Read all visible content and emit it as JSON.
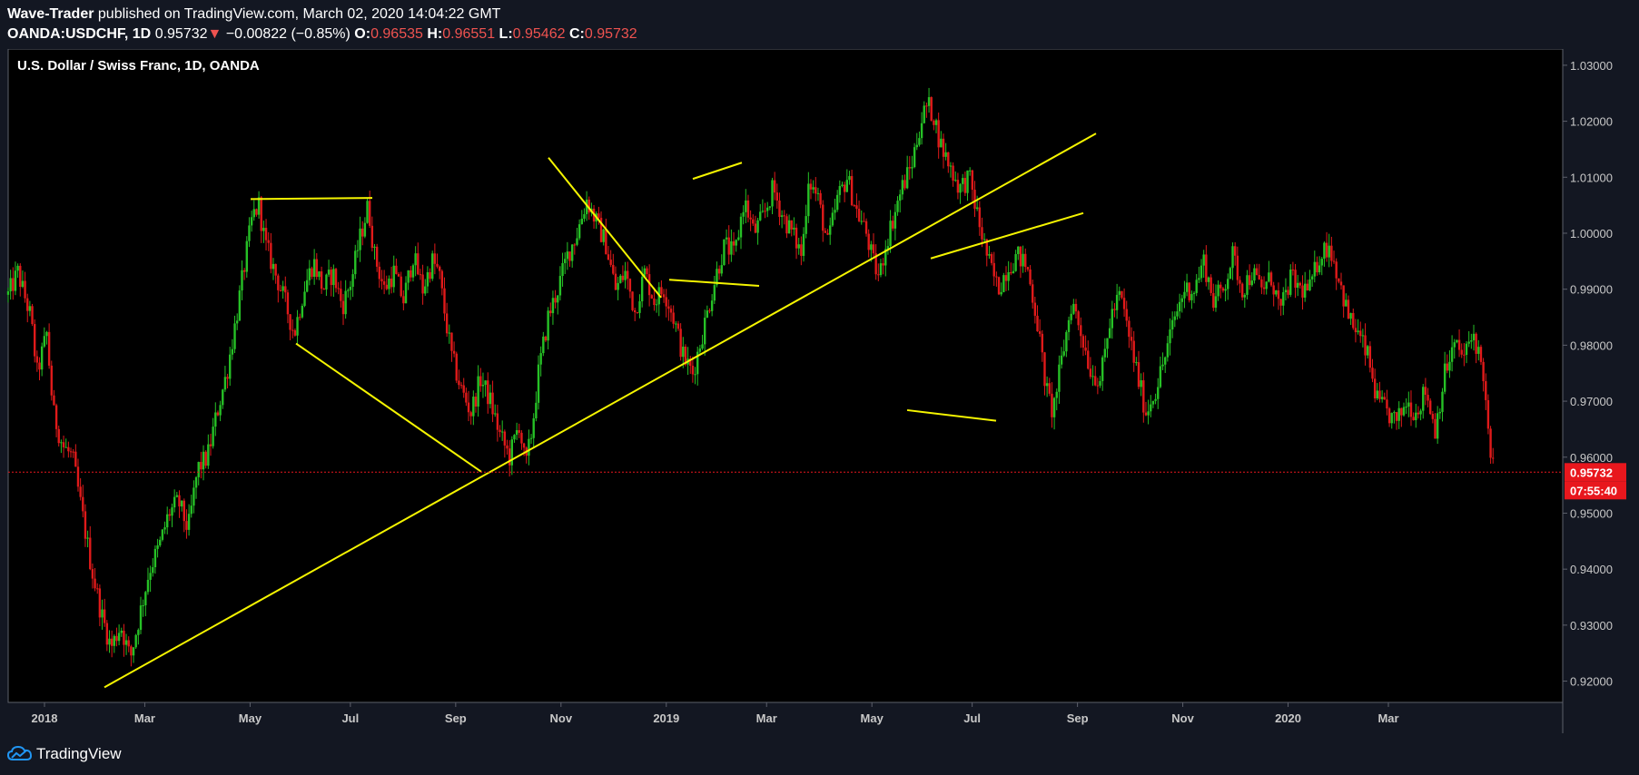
{
  "header": {
    "author": "Wave-Trader",
    "published": " published on TradingView.com, March 02, 2020 14:04:22 GMT",
    "symbol": "OANDA:USDCHF, 1D",
    "last": "0.95732",
    "arrow": "▼",
    "change": "−0.00822 (−0.85%)",
    "o_label": "O:",
    "o": "0.96535",
    "h_label": "H:",
    "h": "0.96551",
    "l_label": "L:",
    "l": "0.95462",
    "c_label": "C:",
    "c": "0.95732"
  },
  "footer": {
    "brand": "TradingView"
  },
  "colors": {
    "up": "#26c126",
    "down": "#e01a1a",
    "trendline": "#f5f500",
    "price_tag": "#e8171d",
    "background": "#000000"
  },
  "chart_data": {
    "type": "candlestick",
    "title": "U.S. Dollar / Swiss Franc, 1D, OANDA",
    "xlabel": "",
    "ylabel": "",
    "ylim": [
      0.9162,
      1.0329
    ],
    "y_ticks": [
      "1.03000",
      "1.02000",
      "1.01000",
      "1.00000",
      "0.99000",
      "0.98000",
      "0.97000",
      "0.96000",
      "0.95000",
      "0.94000",
      "0.93000",
      "0.92000"
    ],
    "x_ticks": [
      "2018",
      "Mar",
      "May",
      "Jul",
      "Sep",
      "Nov",
      "2019",
      "Mar",
      "May",
      "Jul",
      "Sep",
      "Nov",
      "2020",
      "Mar"
    ],
    "x_tick_index": [
      0,
      40,
      82,
      122,
      164,
      206,
      248,
      288,
      330,
      370,
      412,
      454,
      496,
      536
    ],
    "last_price": "0.95732",
    "countdown": "07:55:40",
    "grid": false,
    "close_path": [
      [
        0,
        0.989
      ],
      [
        6,
        0.993
      ],
      [
        14,
        0.985
      ],
      [
        18,
        0.975
      ],
      [
        24,
        0.982
      ],
      [
        28,
        0.968
      ],
      [
        34,
        0.962
      ],
      [
        40,
        0.96
      ],
      [
        46,
        0.95
      ],
      [
        52,
        0.94
      ],
      [
        58,
        0.932
      ],
      [
        64,
        0.926
      ],
      [
        70,
        0.93
      ],
      [
        76,
        0.924
      ],
      [
        82,
        0.932
      ],
      [
        88,
        0.94
      ],
      [
        94,
        0.944
      ],
      [
        100,
        0.95
      ],
      [
        106,
        0.952
      ],
      [
        112,
        0.947
      ],
      [
        118,
        0.958
      ],
      [
        124,
        0.96
      ],
      [
        130,
        0.968
      ],
      [
        136,
        0.975
      ],
      [
        142,
        0.985
      ],
      [
        148,
        0.996
      ],
      [
        152,
        1.003
      ],
      [
        156,
        1.005
      ],
      [
        160,
        0.998
      ],
      [
        166,
        0.993
      ],
      [
        172,
        0.988
      ],
      [
        178,
        0.982
      ],
      [
        184,
        0.99
      ],
      [
        190,
        0.995
      ],
      [
        196,
        0.99
      ],
      [
        202,
        0.993
      ],
      [
        208,
        0.987
      ],
      [
        214,
        0.992
      ],
      [
        218,
        0.998
      ],
      [
        224,
        1.005
      ],
      [
        228,
        0.996
      ],
      [
        234,
        0.99
      ],
      [
        240,
        0.993
      ],
      [
        246,
        0.988
      ],
      [
        252,
        0.996
      ],
      [
        258,
        0.99
      ],
      [
        264,
        0.995
      ],
      [
        268,
        0.993
      ],
      [
        272,
        0.985
      ],
      [
        276,
        0.978
      ],
      [
        282,
        0.972
      ],
      [
        288,
        0.968
      ],
      [
        294,
        0.974
      ],
      [
        300,
        0.97
      ],
      [
        306,
        0.964
      ],
      [
        312,
        0.96
      ],
      [
        318,
        0.966
      ],
      [
        322,
        0.958
      ],
      [
        326,
        0.965
      ],
      [
        330,
        0.975
      ],
      [
        336,
        0.985
      ],
      [
        342,
        0.99
      ],
      [
        348,
        0.996
      ],
      [
        354,
        1.0
      ],
      [
        360,
        1.006
      ],
      [
        366,
        1.002
      ],
      [
        372,
        0.998
      ],
      [
        378,
        0.99
      ],
      [
        384,
        0.993
      ],
      [
        390,
        0.986
      ],
      [
        396,
        0.993
      ],
      [
        402,
        0.988
      ],
      [
        408,
        0.99
      ],
      [
        414,
        0.985
      ],
      [
        420,
        0.978
      ],
      [
        426,
        0.975
      ],
      [
        432,
        0.982
      ],
      [
        440,
        0.992
      ],
      [
        446,
        0.998
      ],
      [
        452,
        0.996
      ],
      [
        458,
        1.006
      ],
      [
        464,
        1.0
      ],
      [
        470,
        1.003
      ],
      [
        476,
        1.008
      ],
      [
        482,
        1.003
      ],
      [
        488,
        1.0
      ],
      [
        494,
        0.996
      ],
      [
        498,
        1.01
      ],
      [
        504,
        1.006
      ],
      [
        510,
        0.998
      ],
      [
        516,
        1.006
      ],
      [
        522,
        1.01
      ],
      [
        528,
        1.004
      ],
      [
        534,
        1.0
      ],
      [
        538,
        0.995
      ],
      [
        542,
        0.992
      ],
      [
        546,
        0.998
      ],
      [
        550,
        1.002
      ],
      [
        556,
        1.008
      ],
      [
        562,
        1.012
      ],
      [
        568,
        1.02
      ],
      [
        572,
        1.023
      ],
      [
        576,
        1.021
      ],
      [
        580,
        1.016
      ],
      [
        586,
        1.012
      ],
      [
        592,
        1.008
      ],
      [
        598,
        1.01
      ],
      [
        604,
        1.002
      ],
      [
        610,
        0.995
      ],
      [
        616,
        0.99
      ],
      [
        622,
        0.994
      ],
      [
        628,
        0.996
      ],
      [
        634,
        0.994
      ],
      [
        640,
        0.985
      ],
      [
        646,
        0.972
      ],
      [
        650,
        0.968
      ],
      [
        656,
        0.978
      ],
      [
        662,
        0.988
      ],
      [
        668,
        0.982
      ],
      [
        674,
        0.975
      ],
      [
        680,
        0.974
      ],
      [
        686,
        0.985
      ],
      [
        692,
        0.989
      ],
      [
        698,
        0.981
      ],
      [
        704,
        0.973
      ],
      [
        708,
        0.968
      ],
      [
        714,
        0.972
      ],
      [
        720,
        0.978
      ],
      [
        726,
        0.985
      ],
      [
        732,
        0.99
      ],
      [
        738,
        0.99
      ],
      [
        744,
        0.995
      ],
      [
        750,
        0.988
      ],
      [
        756,
        0.99
      ],
      [
        762,
        0.996
      ],
      [
        768,
        0.99
      ],
      [
        774,
        0.993
      ],
      [
        780,
        0.99
      ],
      [
        786,
        0.992
      ],
      [
        792,
        0.986
      ],
      [
        798,
        0.992
      ],
      [
        804,
        0.99
      ],
      [
        810,
        0.99
      ],
      [
        816,
        0.996
      ],
      [
        822,
        0.998
      ],
      [
        828,
        0.992
      ],
      [
        834,
        0.985
      ],
      [
        840,
        0.982
      ],
      [
        846,
        0.978
      ],
      [
        852,
        0.97
      ],
      [
        858,
        0.968
      ],
      [
        864,
        0.966
      ],
      [
        870,
        0.97
      ],
      [
        876,
        0.968
      ],
      [
        882,
        0.972
      ],
      [
        888,
        0.965
      ],
      [
        894,
        0.975
      ],
      [
        900,
        0.98
      ],
      [
        906,
        0.978
      ],
      [
        912,
        0.982
      ],
      [
        918,
        0.975
      ],
      [
        922,
        0.96
      ],
      [
        925,
        0.9573
      ]
    ],
    "series_x_max": 925,
    "trendlines": [
      {
        "x1": 115,
        "y1": 0.9189,
        "x2": 1207,
        "y2": 1.0178
      },
      {
        "x1": 276,
        "y1": 1.0061,
        "x2": 410,
        "y2": 1.0063
      },
      {
        "x1": 326,
        "y1": 0.9803,
        "x2": 530,
        "y2": 0.9574
      },
      {
        "x1": 604,
        "y1": 1.0135,
        "x2": 728,
        "y2": 0.9885
      },
      {
        "x1": 737,
        "y1": 0.9917,
        "x2": 836,
        "y2": 0.9906
      },
      {
        "x1": 763,
        "y1": 1.0097,
        "x2": 817,
        "y2": 1.0126
      },
      {
        "x1": 1025,
        "y1": 0.9955,
        "x2": 1193,
        "y2": 1.0036
      },
      {
        "x1": 999,
        "y1": 0.9684,
        "x2": 1097,
        "y2": 0.9665
      }
    ]
  }
}
